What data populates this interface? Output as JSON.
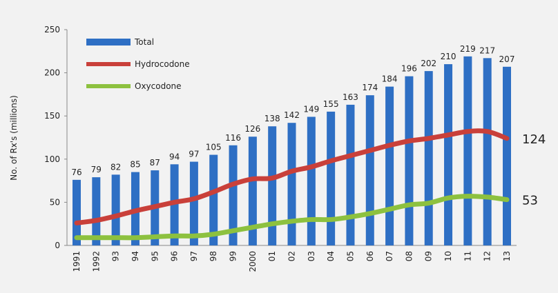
{
  "chart_data": {
    "type": "bar+line",
    "title": "",
    "xlabel": "",
    "ylabel": "No. of Rx's (millions)",
    "ylim": [
      0,
      250
    ],
    "yticks": [
      0,
      50,
      100,
      150,
      200,
      250
    ],
    "grid": false,
    "legend_placement": "top-left",
    "categories": [
      "1991",
      "1992",
      "93",
      "94",
      "95",
      "96",
      "97",
      "98",
      "99",
      "2000",
      "01",
      "02",
      "03",
      "04",
      "05",
      "06",
      "07",
      "08",
      "09",
      "10",
      "11",
      "12",
      "13"
    ],
    "series": [
      {
        "name": "Total",
        "type": "bar",
        "color": "#2e6fc4",
        "values": [
          76,
          79,
          82,
          85,
          87,
          94,
          97,
          105,
          116,
          126,
          138,
          142,
          149,
          155,
          163,
          174,
          184,
          196,
          202,
          210,
          219,
          217,
          207
        ]
      },
      {
        "name": "Hydrocodone",
        "type": "line",
        "color": "#c9403a",
        "values": [
          26,
          29,
          34,
          40,
          45,
          50,
          54,
          62,
          71,
          77,
          78,
          86,
          91,
          98,
          104,
          110,
          116,
          121,
          124,
          128,
          132,
          132,
          124
        ],
        "end_label": "124"
      },
      {
        "name": "Oxycodone",
        "type": "line",
        "color": "#8dc13f",
        "values": [
          9,
          9,
          9,
          9,
          10,
          11,
          11,
          13,
          17,
          21,
          25,
          28,
          30,
          30,
          33,
          37,
          42,
          47,
          49,
          55,
          57,
          56,
          53
        ],
        "end_label": "53"
      }
    ]
  }
}
